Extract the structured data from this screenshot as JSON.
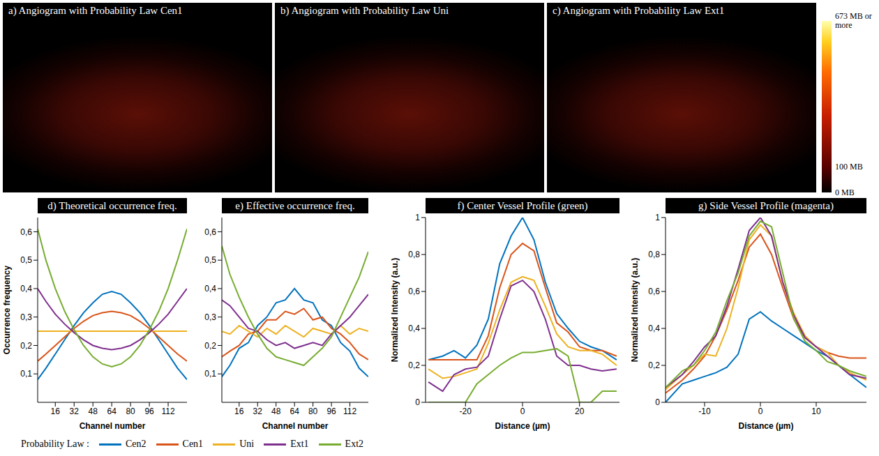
{
  "images": {
    "panels": [
      {
        "title": "a) Angiogram with Probability Law Cen1"
      },
      {
        "title": "b) Angiogram with Probability Law Uni"
      },
      {
        "title": "c) Angiogram with Probability Law Ext1"
      }
    ],
    "colorbar": {
      "range": [
        0,
        673
      ],
      "ticks": [
        {
          "value": 673,
          "label": "673 MB or more"
        },
        {
          "value": 100,
          "label": "100 MB"
        },
        {
          "value": 0,
          "label": "0 MB"
        }
      ]
    }
  },
  "legend": {
    "title": "Probability Law :",
    "position": "bottom"
  },
  "chart_data": [
    {
      "type": "line",
      "title": "d) Theoretical occurrence freq.",
      "x_label": "Channel number",
      "y_label": "Occurrence frequency",
      "grid": false,
      "x": [
        1,
        8,
        16,
        24,
        32,
        40,
        48,
        56,
        64,
        72,
        80,
        88,
        96,
        104,
        112,
        120,
        128
      ],
      "xlim": [
        1,
        128
      ],
      "xticks": [
        16,
        32,
        48,
        64,
        80,
        96,
        112
      ],
      "ylim": [
        0,
        0.65
      ],
      "yticks": [
        {
          "value": 0.1,
          "label": "0,1"
        },
        {
          "value": 0.2,
          "label": "0,2"
        },
        {
          "value": 0.3,
          "label": "0,3"
        },
        {
          "value": 0.4,
          "label": "0,4"
        },
        {
          "value": 0.5,
          "label": "0,5"
        },
        {
          "value": 0.6,
          "label": "0,6"
        }
      ],
      "series": [
        {
          "name": "Cen2",
          "color": "#0072bd",
          "values": [
            0.08,
            0.12,
            0.17,
            0.22,
            0.27,
            0.315,
            0.35,
            0.38,
            0.39,
            0.38,
            0.35,
            0.315,
            0.27,
            0.22,
            0.17,
            0.12,
            0.08
          ]
        },
        {
          "name": "Cen1",
          "color": "#d95319",
          "values": [
            0.145,
            0.17,
            0.2,
            0.23,
            0.26,
            0.285,
            0.305,
            0.315,
            0.32,
            0.315,
            0.305,
            0.285,
            0.26,
            0.23,
            0.2,
            0.17,
            0.145
          ]
        },
        {
          "name": "Uni",
          "color": "#edb120",
          "values": [
            0.25,
            0.25,
            0.25,
            0.25,
            0.25,
            0.25,
            0.25,
            0.25,
            0.25,
            0.25,
            0.25,
            0.25,
            0.25,
            0.25,
            0.25,
            0.25,
            0.25
          ]
        },
        {
          "name": "Ext1",
          "color": "#7e2f8e",
          "values": [
            0.4,
            0.355,
            0.31,
            0.275,
            0.245,
            0.22,
            0.2,
            0.19,
            0.185,
            0.19,
            0.2,
            0.22,
            0.245,
            0.275,
            0.31,
            0.355,
            0.4
          ]
        },
        {
          "name": "Ext2",
          "color": "#77ac30",
          "values": [
            0.61,
            0.5,
            0.4,
            0.32,
            0.255,
            0.2,
            0.16,
            0.135,
            0.125,
            0.135,
            0.16,
            0.2,
            0.255,
            0.32,
            0.4,
            0.5,
            0.61
          ]
        }
      ]
    },
    {
      "type": "line",
      "title": "e) Effective occurrence freq.",
      "x_label": "Channel number",
      "grid": false,
      "x": [
        1,
        8,
        16,
        24,
        32,
        40,
        48,
        56,
        64,
        72,
        80,
        88,
        96,
        104,
        112,
        120,
        128
      ],
      "xlim": [
        1,
        128
      ],
      "xticks": [
        16,
        32,
        48,
        64,
        80,
        96,
        112
      ],
      "ylim": [
        0,
        0.65
      ],
      "yticks": [
        {
          "value": 0.1,
          "label": "0,1"
        },
        {
          "value": 0.2,
          "label": "0,2"
        },
        {
          "value": 0.3,
          "label": "0,3"
        },
        {
          "value": 0.4,
          "label": "0,4"
        },
        {
          "value": 0.5,
          "label": "0,5"
        },
        {
          "value": 0.6,
          "label": "0,6"
        }
      ],
      "series": [
        {
          "name": "Cen2",
          "color": "#0072bd",
          "values": [
            0.09,
            0.13,
            0.19,
            0.21,
            0.27,
            0.3,
            0.35,
            0.36,
            0.4,
            0.36,
            0.35,
            0.29,
            0.27,
            0.21,
            0.18,
            0.12,
            0.09
          ]
        },
        {
          "name": "Cen1",
          "color": "#d95319",
          "values": [
            0.16,
            0.18,
            0.2,
            0.24,
            0.25,
            0.29,
            0.29,
            0.32,
            0.31,
            0.33,
            0.29,
            0.3,
            0.26,
            0.24,
            0.21,
            0.17,
            0.15
          ]
        },
        {
          "name": "Uni",
          "color": "#edb120",
          "values": [
            0.25,
            0.24,
            0.27,
            0.25,
            0.23,
            0.26,
            0.24,
            0.27,
            0.25,
            0.23,
            0.26,
            0.25,
            0.24,
            0.27,
            0.24,
            0.26,
            0.25
          ]
        },
        {
          "name": "Ext1",
          "color": "#7e2f8e",
          "values": [
            0.36,
            0.34,
            0.3,
            0.26,
            0.25,
            0.22,
            0.2,
            0.21,
            0.19,
            0.2,
            0.21,
            0.2,
            0.24,
            0.27,
            0.3,
            0.34,
            0.38
          ]
        },
        {
          "name": "Ext2",
          "color": "#77ac30",
          "values": [
            0.55,
            0.45,
            0.37,
            0.3,
            0.24,
            0.19,
            0.16,
            0.15,
            0.14,
            0.13,
            0.16,
            0.19,
            0.23,
            0.3,
            0.37,
            0.44,
            0.53
          ]
        }
      ]
    },
    {
      "type": "line",
      "title": "f) Center Vessel Profile (green)",
      "x_label": "Distance (µm)",
      "y_label": "Normalized Intensity (a.u.)",
      "grid": false,
      "x": [
        -33,
        -28,
        -24,
        -20,
        -16,
        -12,
        -8,
        -4,
        0,
        4,
        8,
        12,
        16,
        20,
        24,
        28,
        33
      ],
      "xlim": [
        -34,
        34
      ],
      "xticks": [
        -20,
        0,
        20
      ],
      "ylim": [
        0,
        1
      ],
      "yticks": [
        0,
        {
          "value": 0.2,
          "label": "0,2"
        },
        {
          "value": 0.4,
          "label": "0,4"
        },
        {
          "value": 0.6,
          "label": "0,6"
        },
        {
          "value": 0.8,
          "label": "0,8"
        },
        1
      ],
      "series": [
        {
          "name": "Cen2",
          "color": "#0072bd",
          "values": [
            0.23,
            0.25,
            0.28,
            0.24,
            0.31,
            0.45,
            0.75,
            0.9,
            1.0,
            0.88,
            0.65,
            0.48,
            0.4,
            0.33,
            0.3,
            0.28,
            0.23
          ]
        },
        {
          "name": "Cen1",
          "color": "#d95319",
          "values": [
            0.23,
            0.23,
            0.23,
            0.23,
            0.23,
            0.36,
            0.62,
            0.8,
            0.86,
            0.82,
            0.62,
            0.43,
            0.38,
            0.3,
            0.28,
            0.28,
            0.25
          ]
        },
        {
          "name": "Uni",
          "color": "#edb120",
          "values": [
            0.18,
            0.13,
            0.14,
            0.16,
            0.18,
            0.32,
            0.5,
            0.65,
            0.68,
            0.66,
            0.52,
            0.37,
            0.3,
            0.28,
            0.28,
            0.26,
            0.2
          ]
        },
        {
          "name": "Ext1",
          "color": "#7e2f8e",
          "values": [
            0.11,
            0.06,
            0.15,
            0.18,
            0.19,
            0.25,
            0.45,
            0.63,
            0.66,
            0.6,
            0.45,
            0.25,
            0.2,
            0.2,
            0.18,
            0.17,
            0.18
          ]
        },
        {
          "name": "Ext2",
          "color": "#77ac30",
          "values": [
            0.0,
            0.0,
            0.0,
            0.0,
            0.1,
            0.15,
            0.2,
            0.24,
            0.27,
            0.27,
            0.28,
            0.29,
            0.25,
            0.0,
            0.0,
            0.06,
            0.06
          ]
        }
      ]
    },
    {
      "type": "line",
      "title": "g) Side Vessel Profile (magenta)",
      "x_label": "Distance (µm)",
      "y_label": "Normalized Intensity (a.u.)",
      "grid": false,
      "x": [
        -17,
        -14,
        -12,
        -10,
        -8,
        -6,
        -4,
        -2,
        0,
        2,
        4,
        6,
        8,
        10,
        12,
        14,
        16,
        19
      ],
      "xlim": [
        -17,
        19
      ],
      "xticks": [
        -10,
        0,
        10
      ],
      "ylim": [
        0,
        1
      ],
      "yticks": [
        0,
        {
          "value": 0.2,
          "label": "0,2"
        },
        {
          "value": 0.4,
          "label": "0,4"
        },
        {
          "value": 0.6,
          "label": "0,6"
        },
        {
          "value": 0.8,
          "label": "0,8"
        },
        1
      ],
      "series": [
        {
          "name": "Cen2",
          "color": "#0072bd",
          "values": [
            0.0,
            0.1,
            0.12,
            0.14,
            0.16,
            0.19,
            0.26,
            0.45,
            0.49,
            0.44,
            0.4,
            0.36,
            0.32,
            0.28,
            0.25,
            0.2,
            0.15,
            0.08
          ]
        },
        {
          "name": "Cen1",
          "color": "#d95319",
          "values": [
            0.05,
            0.12,
            0.18,
            0.25,
            0.36,
            0.5,
            0.66,
            0.84,
            0.91,
            0.8,
            0.62,
            0.45,
            0.35,
            0.3,
            0.27,
            0.25,
            0.24,
            0.24
          ]
        },
        {
          "name": "Uni",
          "color": "#edb120",
          "values": [
            0.07,
            0.15,
            0.2,
            0.26,
            0.25,
            0.4,
            0.62,
            0.88,
            0.96,
            0.9,
            0.65,
            0.48,
            0.36,
            0.3,
            0.27,
            0.2,
            0.16,
            0.12
          ]
        },
        {
          "name": "Ext1",
          "color": "#7e2f8e",
          "values": [
            0.08,
            0.15,
            0.22,
            0.3,
            0.36,
            0.52,
            0.72,
            0.93,
            1.0,
            0.9,
            0.65,
            0.47,
            0.35,
            0.3,
            0.25,
            0.2,
            0.15,
            0.13
          ]
        },
        {
          "name": "Ext2",
          "color": "#77ac30",
          "values": [
            0.08,
            0.17,
            0.2,
            0.28,
            0.38,
            0.55,
            0.7,
            0.9,
            0.98,
            0.95,
            0.7,
            0.45,
            0.33,
            0.28,
            0.22,
            0.2,
            0.17,
            0.14
          ]
        }
      ]
    }
  ]
}
